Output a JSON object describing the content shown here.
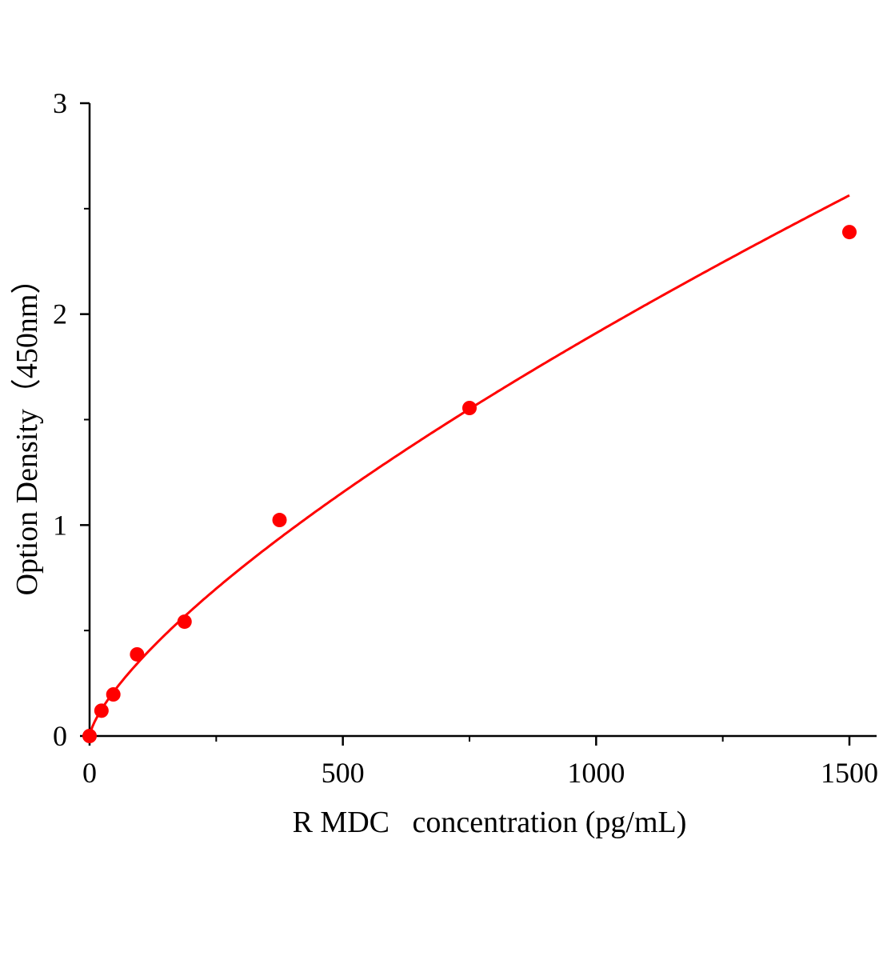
{
  "chart_data": {
    "type": "scatter",
    "title": "",
    "xlabel": "R MDC   concentration (pg/mL)",
    "ylabel": "Option Density（450nm）",
    "xlim": [
      0,
      1550
    ],
    "ylim": [
      0,
      3
    ],
    "x_ticks": [
      "0",
      "500",
      "1000",
      "1500"
    ],
    "y_ticks": [
      "0",
      "1",
      "2",
      "3"
    ],
    "x_tick_values": [
      0,
      500,
      1000,
      1500
    ],
    "y_tick_values": [
      0,
      1,
      2,
      3
    ],
    "x_minor_ticks": [
      250,
      750,
      1250
    ],
    "y_minor_ticks": [
      0.5,
      1.5,
      2.5
    ],
    "grid": false,
    "color": "#ff0000",
    "series": [
      {
        "x": [
          0,
          23.44,
          46.88,
          93.75,
          187.5,
          375,
          750,
          1500
        ],
        "y": [
          0.0,
          0.12,
          0.197,
          0.387,
          0.542,
          1.024,
          1.555,
          2.389
        ],
        "fit": "curve"
      }
    ]
  }
}
